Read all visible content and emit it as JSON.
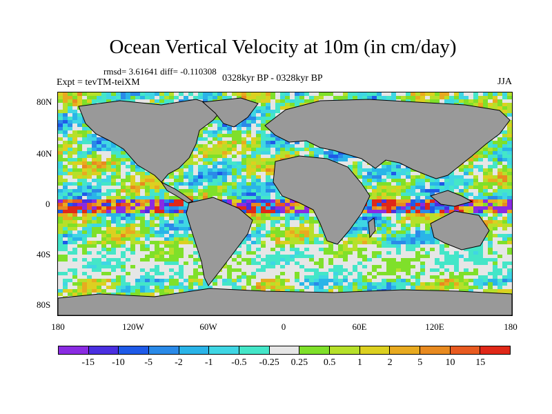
{
  "title": "Ocean Vertical Velocity at 10m (in cm/day)",
  "stats": "rmsd= 3.61641 diff= -0.110308",
  "experiment": "Expt = tevTM-teiXM",
  "period": "0328kyr BP - 0328kyr BP",
  "season": "JJA",
  "lat_ticks": [
    "80N",
    "40N",
    "0",
    "40S",
    "80S"
  ],
  "lon_ticks": [
    "180",
    "120W",
    "60W",
    "0",
    "60E",
    "120E",
    "180"
  ],
  "colorbar": {
    "labels": [
      "-15",
      "-10",
      "-5",
      "-2",
      "-1",
      "-0.5",
      "-0.25",
      "0.25",
      "0.5",
      "1",
      "2",
      "5",
      "10",
      "15"
    ],
    "colors": [
      "#8a2be2",
      "#4a2fe0",
      "#1f5ae8",
      "#2a8ae8",
      "#2ab4e8",
      "#3fd6e4",
      "#44e6c8",
      "#e6e6e6",
      "#7fe02a",
      "#b6e02a",
      "#dcd020",
      "#e8aa20",
      "#e88a20",
      "#e85a20",
      "#e02818"
    ]
  },
  "land_color": "#999999"
}
